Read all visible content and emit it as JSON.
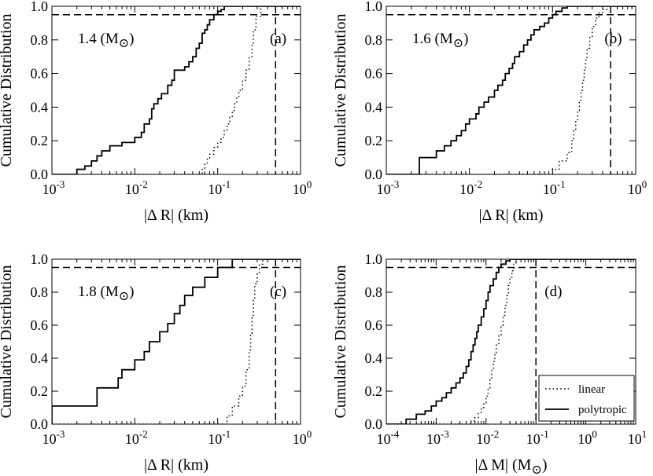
{
  "chart_data": [
    {
      "panel": "(a)",
      "type": "line",
      "mass_label": "1.4 (M",
      "panel_label": "(a)",
      "xlabel": "|Δ R| (km)",
      "ylabel": "Cumulative Distribution",
      "xscale": "log",
      "xlim_exp": [
        -3,
        0
      ],
      "xtick_exps": [
        "-3",
        "-2",
        "-1",
        "0"
      ],
      "ylim": [
        0,
        1
      ],
      "yticks": [
        "0.0",
        "0.2",
        "0.4",
        "0.6",
        "0.8",
        "1.0"
      ],
      "ref_x": 0.5,
      "ref_y": 0.95,
      "series": [
        {
          "name": "linear",
          "style": "dotted",
          "x": [
            0.065,
            0.07,
            0.075,
            0.08,
            0.09,
            0.1,
            0.11,
            0.12,
            0.13,
            0.14,
            0.15,
            0.16,
            0.17,
            0.18,
            0.2,
            0.22,
            0.24,
            0.26,
            0.27,
            0.29,
            0.33
          ],
          "y": [
            0.03,
            0.06,
            0.09,
            0.12,
            0.16,
            0.19,
            0.22,
            0.26,
            0.3,
            0.34,
            0.38,
            0.42,
            0.46,
            0.5,
            0.56,
            0.62,
            0.7,
            0.78,
            0.86,
            0.94,
            1.0
          ]
        },
        {
          "name": "polytropic",
          "style": "solid",
          "x": [
            0.002,
            0.0025,
            0.003,
            0.0035,
            0.004,
            0.005,
            0.007,
            0.01,
            0.012,
            0.013,
            0.015,
            0.016,
            0.017,
            0.019,
            0.021,
            0.025,
            0.028,
            0.03,
            0.04,
            0.045,
            0.05,
            0.055,
            0.06,
            0.065,
            0.07,
            0.075,
            0.08,
            0.09,
            0.1,
            0.11,
            0.12
          ],
          "y": [
            0.03,
            0.05,
            0.08,
            0.11,
            0.14,
            0.17,
            0.19,
            0.22,
            0.25,
            0.3,
            0.33,
            0.39,
            0.42,
            0.45,
            0.48,
            0.53,
            0.56,
            0.62,
            0.64,
            0.67,
            0.7,
            0.75,
            0.78,
            0.84,
            0.86,
            0.89,
            0.92,
            0.95,
            0.97,
            0.98,
            1.0
          ]
        }
      ]
    },
    {
      "panel": "(b)",
      "type": "line",
      "mass_label": "1.6 (M",
      "panel_label": "(b)",
      "xlabel": "|Δ R| (km)",
      "ylabel": "Cumulative Distribution",
      "xscale": "log",
      "xlim_exp": [
        -3,
        0
      ],
      "xtick_exps": [
        "-3",
        "-2",
        "-1",
        "0"
      ],
      "ylim": [
        0,
        1
      ],
      "yticks": [
        "0.0",
        "0.2",
        "0.4",
        "0.6",
        "0.8",
        "1.0"
      ],
      "ref_x": 0.5,
      "ref_y": 0.95,
      "series": [
        {
          "name": "linear",
          "style": "dotted",
          "x": [
            0.1,
            0.12,
            0.15,
            0.17,
            0.18,
            0.19,
            0.2,
            0.21,
            0.22,
            0.23,
            0.24,
            0.25,
            0.26,
            0.28,
            0.3,
            0.33,
            0.36,
            0.4,
            0.45
          ],
          "y": [
            0.03,
            0.08,
            0.13,
            0.2,
            0.26,
            0.32,
            0.38,
            0.44,
            0.5,
            0.56,
            0.62,
            0.68,
            0.75,
            0.82,
            0.88,
            0.93,
            0.96,
            0.98,
            1.0
          ]
        },
        {
          "name": "polytropic",
          "style": "solid",
          "x": [
            0.0025,
            0.004,
            0.005,
            0.006,
            0.007,
            0.008,
            0.009,
            0.01,
            0.012,
            0.013,
            0.015,
            0.017,
            0.02,
            0.022,
            0.025,
            0.027,
            0.03,
            0.033,
            0.035,
            0.04,
            0.045,
            0.05,
            0.055,
            0.06,
            0.07,
            0.08,
            0.09,
            0.1,
            0.11,
            0.13,
            0.15
          ],
          "y": [
            0.1,
            0.14,
            0.17,
            0.2,
            0.23,
            0.26,
            0.3,
            0.33,
            0.36,
            0.4,
            0.43,
            0.46,
            0.5,
            0.53,
            0.56,
            0.6,
            0.63,
            0.66,
            0.7,
            0.73,
            0.77,
            0.8,
            0.83,
            0.86,
            0.88,
            0.9,
            0.93,
            0.95,
            0.97,
            0.99,
            1.0
          ]
        }
      ]
    },
    {
      "panel": "(c)",
      "type": "line",
      "mass_label": "1.8 (M",
      "panel_label": "(c)",
      "xlabel": "|Δ R| (km)",
      "ylabel": "Cumulative Distribution",
      "xscale": "log",
      "xlim_exp": [
        -3,
        0
      ],
      "xtick_exps": [
        "-3",
        "-2",
        "-1",
        "0"
      ],
      "ylim": [
        0,
        1
      ],
      "yticks": [
        "0.0",
        "0.2",
        "0.4",
        "0.6",
        "0.8",
        "1.0"
      ],
      "ref_x": 0.5,
      "ref_y": 0.95,
      "series": [
        {
          "name": "linear",
          "style": "dotted",
          "x": [
            0.13,
            0.15,
            0.18,
            0.2,
            0.22,
            0.24,
            0.25,
            0.26,
            0.27,
            0.28,
            0.3,
            0.32,
            0.35
          ],
          "y": [
            0.05,
            0.11,
            0.17,
            0.23,
            0.33,
            0.45,
            0.55,
            0.66,
            0.75,
            0.85,
            0.92,
            0.97,
            1.0
          ]
        },
        {
          "name": "polytropic",
          "style": "solid",
          "x": [
            0.001,
            0.0035,
            0.0063,
            0.007,
            0.01,
            0.013,
            0.015,
            0.02,
            0.025,
            0.03,
            0.035,
            0.04,
            0.05,
            0.07,
            0.1,
            0.15
          ],
          "y": [
            0.11,
            0.22,
            0.28,
            0.33,
            0.39,
            0.44,
            0.5,
            0.56,
            0.61,
            0.67,
            0.72,
            0.78,
            0.83,
            0.89,
            0.95,
            1.0
          ]
        }
      ]
    },
    {
      "panel": "(d)",
      "type": "line",
      "panel_label": "(d)",
      "xlabel": "|Δ M| (M",
      "ylabel": "Cumulative Distribution",
      "xscale": "log",
      "xlim_exp": [
        -4,
        1
      ],
      "xtick_exps": [
        "-4",
        "-3",
        "-2",
        "-1",
        "0",
        "1"
      ],
      "ylim": [
        0,
        1
      ],
      "yticks": [
        "0.0",
        "0.2",
        "0.4",
        "0.6",
        "0.8",
        "1.0"
      ],
      "ref_x": 0.1,
      "ref_y": 0.95,
      "legend": {
        "position": "bottom-right",
        "entries": [
          "linear",
          "polytropic"
        ]
      },
      "series": [
        {
          "name": "linear",
          "style": "dotted",
          "x": [
            0.005,
            0.006,
            0.007,
            0.008,
            0.009,
            0.01,
            0.011,
            0.012,
            0.013,
            0.014,
            0.015,
            0.016,
            0.018,
            0.02,
            0.022,
            0.024,
            0.026,
            0.028,
            0.03,
            0.033,
            0.036,
            0.04
          ],
          "y": [
            0.02,
            0.04,
            0.07,
            0.1,
            0.13,
            0.17,
            0.22,
            0.27,
            0.33,
            0.38,
            0.43,
            0.48,
            0.54,
            0.6,
            0.66,
            0.72,
            0.78,
            0.84,
            0.89,
            0.93,
            0.97,
            1.0
          ]
        },
        {
          "name": "polytropic",
          "style": "solid",
          "x": [
            0.00025,
            0.0004,
            0.0006,
            0.0008,
            0.001,
            0.0013,
            0.0016,
            0.002,
            0.0025,
            0.003,
            0.0035,
            0.004,
            0.0045,
            0.005,
            0.0055,
            0.006,
            0.0065,
            0.007,
            0.008,
            0.009,
            0.01,
            0.011,
            0.012,
            0.014,
            0.016,
            0.018,
            0.02,
            0.025,
            0.03
          ],
          "y": [
            0.03,
            0.06,
            0.08,
            0.11,
            0.14,
            0.16,
            0.19,
            0.22,
            0.25,
            0.28,
            0.31,
            0.35,
            0.39,
            0.44,
            0.48,
            0.52,
            0.56,
            0.6,
            0.65,
            0.7,
            0.75,
            0.8,
            0.84,
            0.88,
            0.92,
            0.95,
            0.97,
            0.99,
            1.0
          ]
        }
      ]
    }
  ]
}
